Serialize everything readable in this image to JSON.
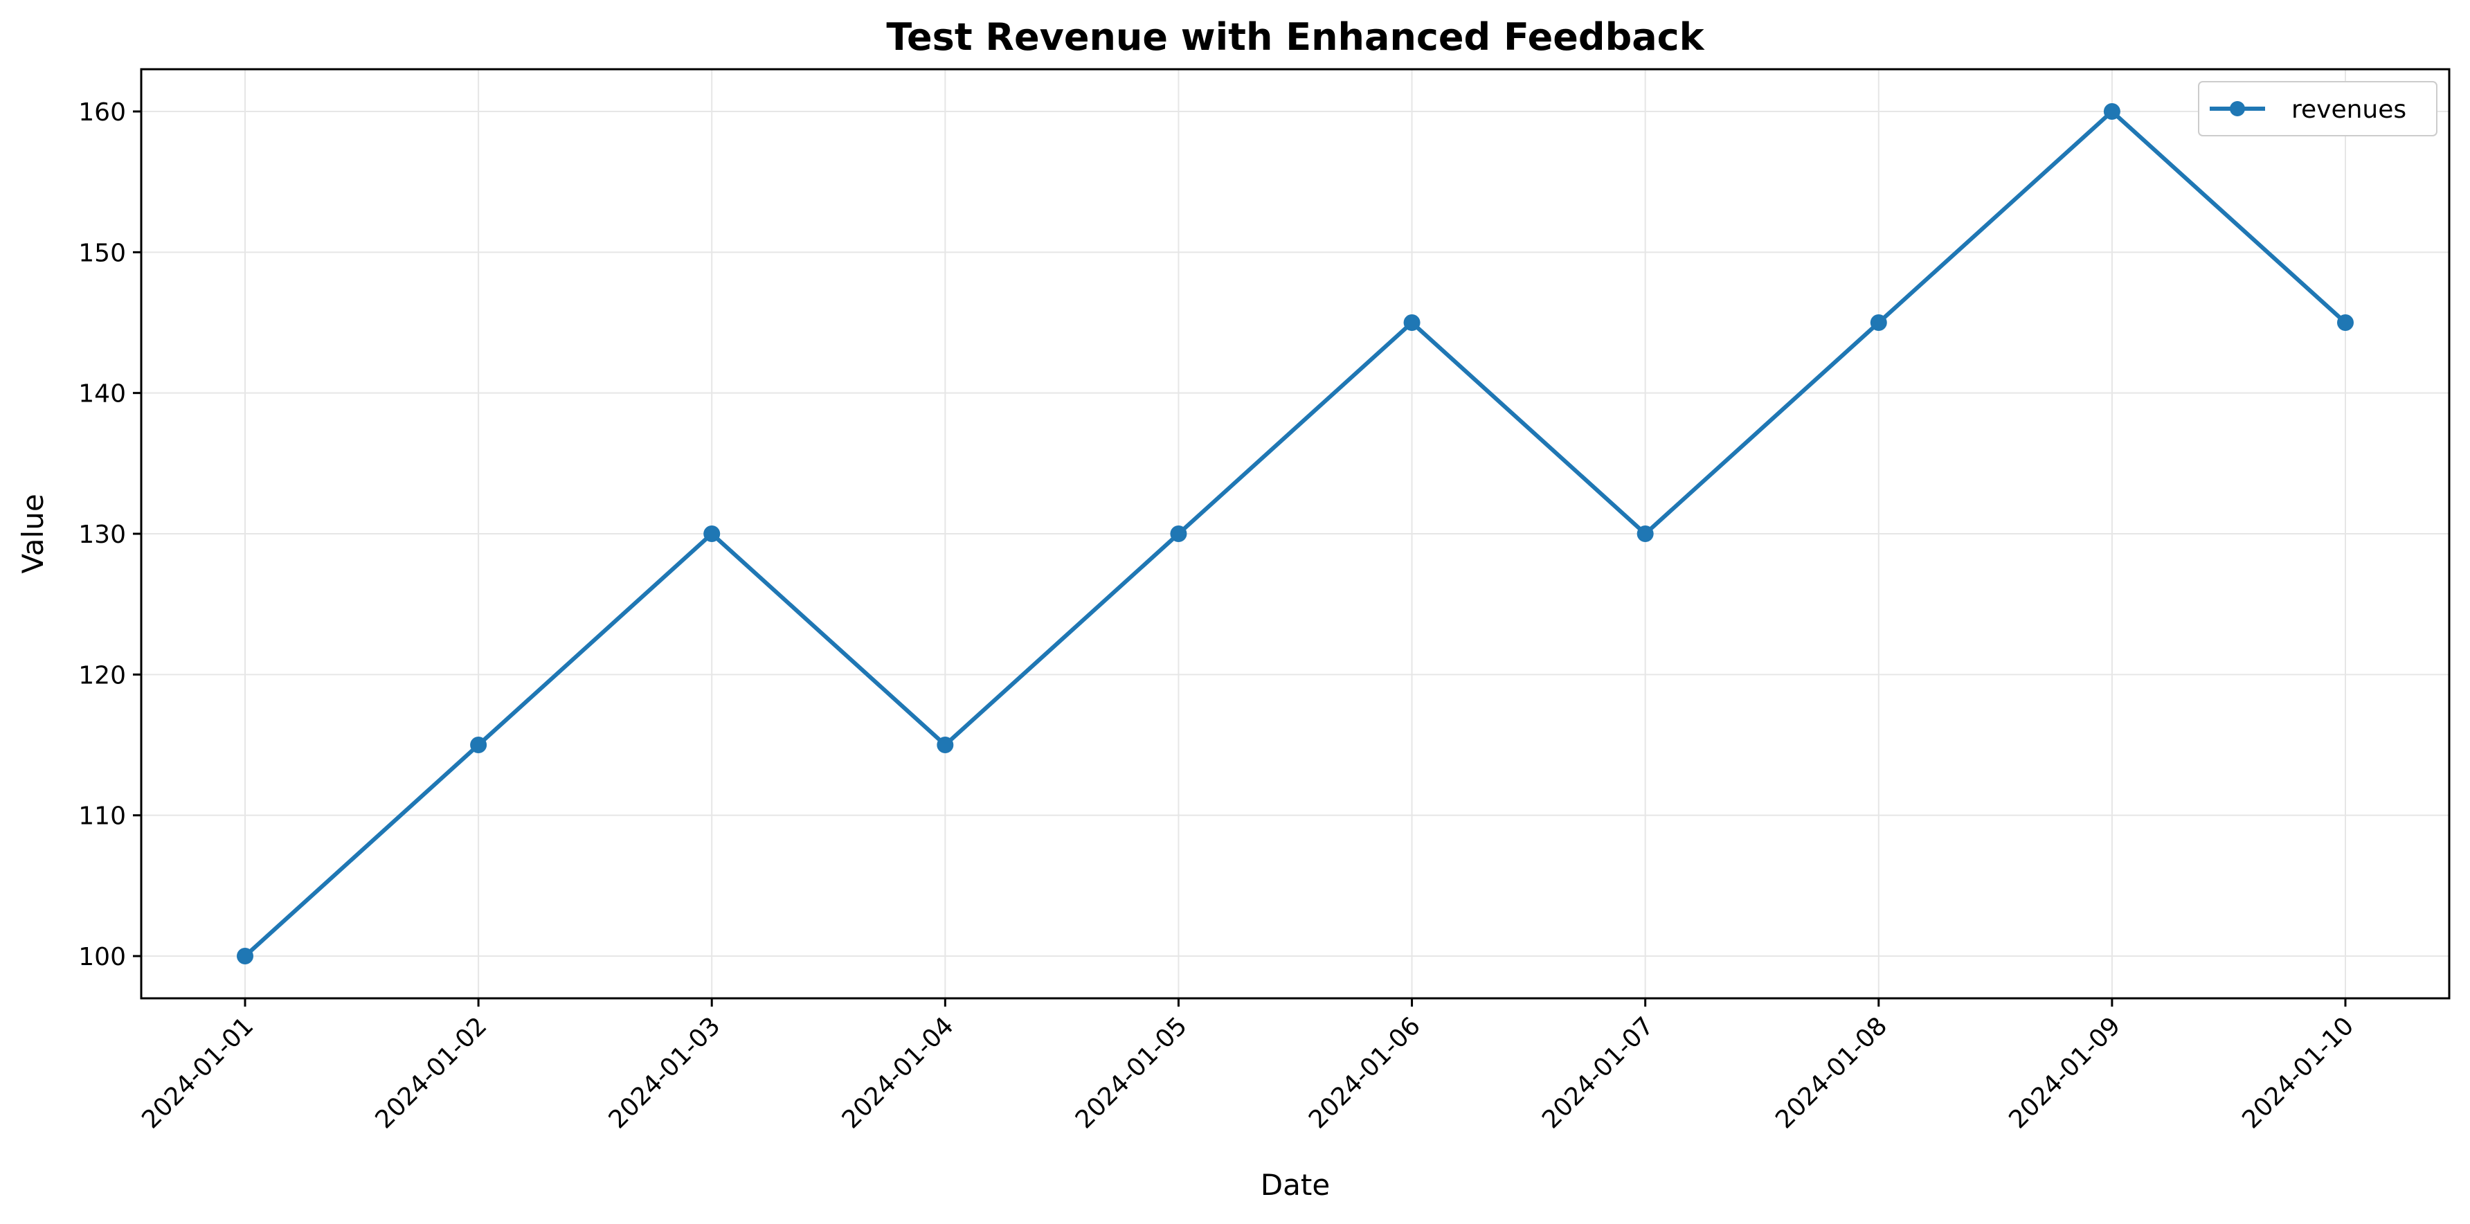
{
  "colors": {
    "series": "#1f77b4",
    "grid": "#e6e6e6",
    "axis": "#000000"
  },
  "chart_data": {
    "type": "line",
    "title": "Test Revenue with Enhanced Feedback",
    "xlabel": "Date",
    "ylabel": "Value",
    "x": [
      "2024-01-01",
      "2024-01-02",
      "2024-01-03",
      "2024-01-04",
      "2024-01-05",
      "2024-01-06",
      "2024-01-07",
      "2024-01-08",
      "2024-01-09",
      "2024-01-10"
    ],
    "series": [
      {
        "name": "revenues",
        "values": [
          100,
          115,
          130,
          115,
          130,
          145,
          130,
          145,
          160,
          145
        ]
      }
    ],
    "ylim": [
      97,
      163
    ],
    "yticks": [
      100,
      110,
      120,
      130,
      140,
      150,
      160
    ],
    "grid": true,
    "legend_position": "top-right",
    "marker": "circle"
  }
}
